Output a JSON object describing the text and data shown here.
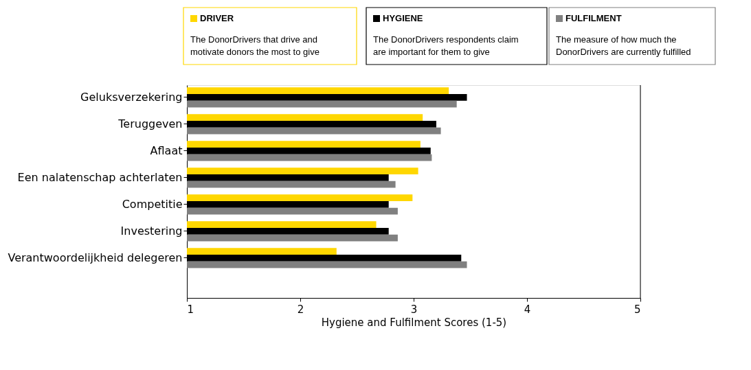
{
  "chart_data": {
    "type": "bar",
    "orientation": "horizontal",
    "xlabel": "Hygiene and Fulfilment Scores (1-5)",
    "categories": [
      "Geluksverzekering",
      "Teruggeven",
      "Aflaat",
      "Een nalatenschap achterlaten",
      "Competitie",
      "Investering",
      "Verantwoordelijkheid delegeren"
    ],
    "series": [
      {
        "name": "DRIVER",
        "color": "#ffd700",
        "values": [
          3.31,
          3.08,
          3.06,
          3.04,
          2.99,
          2.67,
          2.32
        ]
      },
      {
        "name": "HYGIENE",
        "color": "#000000",
        "values": [
          3.47,
          3.2,
          3.15,
          2.78,
          2.78,
          2.78,
          3.42
        ]
      },
      {
        "name": "FULFILMENT",
        "color": "#808080",
        "values": [
          3.38,
          3.24,
          3.16,
          2.84,
          2.86,
          2.86,
          3.47
        ]
      }
    ],
    "annotations": [
      "The DonorDrivers that drive and\nmotivate donors the most to give",
      "The DonorDrivers respondents claim\nare important for them to give",
      "The measure of how much the\nDonorDrivers are currently fulfilled"
    ],
    "xlim": [
      1,
      5
    ],
    "xticks": [
      1,
      2,
      3,
      4,
      5
    ],
    "grid": false,
    "legend": "top"
  }
}
